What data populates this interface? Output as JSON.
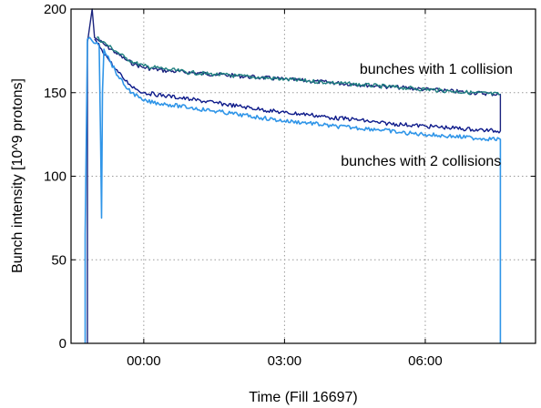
{
  "chart_data": {
    "type": "line",
    "title": "",
    "xlabel": "Time (Fill 16697)",
    "ylabel": "Bunch intensity [10^9 protons]",
    "ylim": [
      0,
      200
    ],
    "xlim": [
      -1.55,
      8.35
    ],
    "y_ticks": [
      0,
      50,
      100,
      150,
      200
    ],
    "x_ticks": [
      {
        "value": 0,
        "label": "00:00"
      },
      {
        "value": 3,
        "label": "03:00"
      },
      {
        "value": 6,
        "label": "06:00"
      }
    ],
    "grid": true,
    "annotations": [
      {
        "text": "bunches with 1 collision",
        "x": 4.6,
        "y": 164
      },
      {
        "text": "bunches with 2 collisions",
        "x": 4.2,
        "y": 109
      }
    ],
    "series": [
      {
        "color": "#1a237e",
        "x": [
          -1.2,
          -1.2,
          -1.1,
          -1.05,
          -1.0,
          -0.8,
          -0.6,
          -0.4,
          -0.2,
          0.0,
          0.5,
          1.0,
          1.5,
          2.0,
          2.5,
          3.0,
          3.5,
          4.0,
          4.5,
          5.0,
          5.5,
          6.0,
          6.5,
          7.0,
          7.6,
          7.6
        ],
        "y": [
          0,
          180,
          200,
          183,
          182,
          178,
          174,
          170,
          167,
          165,
          163,
          162,
          161,
          160,
          159,
          158,
          157,
          156,
          155,
          154,
          153,
          152,
          151,
          150,
          149,
          127
        ]
      },
      {
        "color": "#1f7f7f",
        "x": [
          -1.0,
          -0.8,
          -0.6,
          -0.4,
          -0.2,
          0.0,
          0.5,
          1.0,
          1.5,
          2.0,
          2.5,
          3.0,
          3.5,
          4.0,
          4.5,
          5.0,
          5.5,
          6.0,
          6.5,
          7.0,
          7.6
        ],
        "y": [
          183,
          179,
          175,
          171,
          168,
          166,
          164,
          162,
          161,
          160,
          159,
          158,
          157,
          156,
          155,
          154,
          153,
          152,
          151,
          150,
          149
        ]
      },
      {
        "color": "#0d1a8a",
        "x": [
          -1.05,
          -0.9,
          -0.75,
          -0.6,
          -0.45,
          -0.3,
          -0.15,
          0.0,
          0.5,
          1.0,
          1.5,
          2.0,
          2.5,
          3.0,
          3.5,
          4.0,
          4.5,
          5.0,
          5.5,
          6.0,
          6.5,
          7.0,
          7.6
        ],
        "y": [
          182,
          176,
          170,
          164,
          159,
          155,
          152,
          150,
          148,
          146,
          144,
          142,
          140,
          138,
          137,
          135,
          134,
          132,
          131,
          130,
          129,
          128,
          127
        ]
      },
      {
        "color": "#2f95e8",
        "x": [
          -1.25,
          -1.25,
          -1.2,
          -1.15,
          -1.1,
          -1.0,
          -0.95,
          -0.92,
          -0.9,
          -0.88,
          -0.85,
          -0.7,
          -0.55,
          -0.4,
          -0.25,
          -0.1,
          0.0,
          0.5,
          1.0,
          1.5,
          2.0,
          2.5,
          3.0,
          3.5,
          4.0,
          4.5,
          5.0,
          5.5,
          6.0,
          6.5,
          7.0,
          7.6,
          7.6
        ],
        "y": [
          0,
          65,
          182,
          183,
          181,
          180,
          178,
          120,
          75,
          150,
          176,
          168,
          160,
          154,
          150,
          147,
          145,
          143,
          141,
          139,
          137,
          135,
          133,
          132,
          130,
          129,
          128,
          126,
          125,
          124,
          123,
          122,
          0
        ]
      }
    ]
  }
}
